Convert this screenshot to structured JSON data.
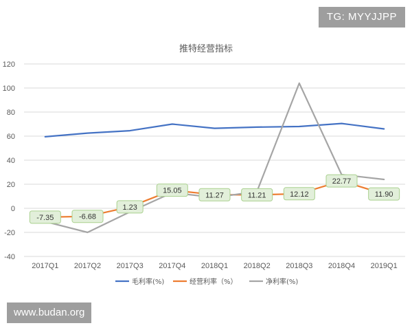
{
  "watermarks": {
    "top_right": "TG: MYYJJPP",
    "bottom_left": "www.budan.org"
  },
  "colors": {
    "gross": "#4472c4",
    "operating": "#ed7d31",
    "net": "#a5a5a5",
    "label_bg": "#e2efda",
    "label_border": "#a9d08e",
    "grid": "#d9d9d9",
    "text": "#595959"
  },
  "chart_data": {
    "type": "line",
    "title": "推特经营指标",
    "categories": [
      "2017Q1",
      "2017Q2",
      "2017Q3",
      "2017Q4",
      "2018Q1",
      "2018Q2",
      "2018Q3",
      "2018Q4",
      "2019Q1"
    ],
    "series": [
      {
        "name": "毛利率(%)",
        "color": "#4472c4",
        "values": [
          59.5,
          62.5,
          64.5,
          70.0,
          66.5,
          67.5,
          68.0,
          70.5,
          66.0
        ]
      },
      {
        "name": "经营利率（%）",
        "color": "#ed7d31",
        "values": [
          -7.35,
          -6.68,
          1.23,
          15.05,
          11.27,
          11.21,
          12.12,
          22.77,
          11.9
        ],
        "data_labels": [
          "-7.35",
          "-6.68",
          "1.23",
          "15.05",
          "11.27",
          "11.21",
          "12.12",
          "22.77",
          "11.90"
        ]
      },
      {
        "name": "净利率(%)",
        "color": "#a5a5a5",
        "values": [
          -11,
          -20,
          -3,
          13,
          9,
          14,
          104,
          28,
          24
        ]
      }
    ],
    "ylim": [
      -40,
      120
    ],
    "yticks": [
      "-40",
      "-20",
      "0",
      "20",
      "40",
      "60",
      "80",
      "100",
      "120"
    ],
    "xlabel": "",
    "ylabel": "",
    "legend": "bottom",
    "grid": true
  }
}
